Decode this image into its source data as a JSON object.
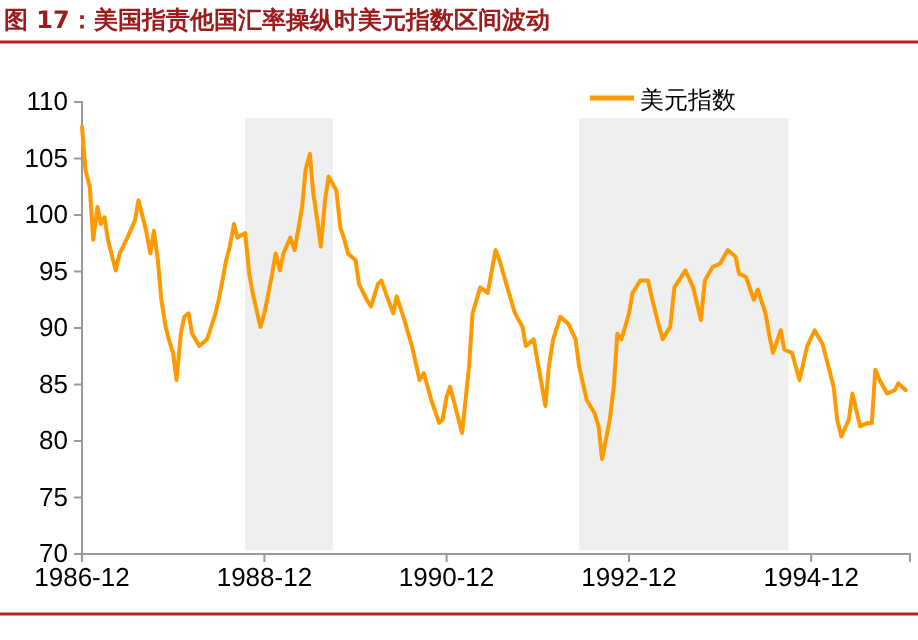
{
  "chart_data": {
    "type": "line",
    "title": "图 17：美国指责他国汇率操纵时美元指数区间波动",
    "series": [
      {
        "name": "美元指数",
        "color": "#ff9900",
        "x": [
          "1986-12-01",
          "1986-12-15",
          "1987-01-01",
          "1987-01-15",
          "1987-02-01",
          "1987-02-15",
          "1987-03-01",
          "1987-03-15",
          "1987-04-15",
          "1987-05-01",
          "1987-06-01",
          "1987-07-01",
          "1987-07-15",
          "1987-08-15",
          "1987-09-01",
          "1987-09-15",
          "1987-10-01",
          "1987-10-15",
          "1987-11-01",
          "1987-11-15",
          "1987-12-01",
          "1987-12-15",
          "1988-01-01",
          "1988-01-15",
          "1988-02-01",
          "1988-02-15",
          "1988-03-15",
          "1988-04-15",
          "1988-05-15",
          "1988-06-01",
          "1988-07-01",
          "1988-07-15",
          "1988-08-01",
          "1988-08-15",
          "1988-09-15",
          "1988-10-01",
          "1988-10-15",
          "1988-11-15",
          "1988-12-01",
          "1989-01-01",
          "1989-01-15",
          "1989-02-01",
          "1989-02-15",
          "1989-03-15",
          "1989-04-01",
          "1989-05-01",
          "1989-05-15",
          "1989-06-01",
          "1989-06-15",
          "1989-07-01",
          "1989-07-15",
          "1989-08-01",
          "1989-08-15",
          "1989-09-15",
          "1989-10-01",
          "1989-10-15",
          "1989-11-01",
          "1989-12-01",
          "1989-12-15",
          "1990-01-15",
          "1990-02-01",
          "1990-03-01",
          "1990-03-15",
          "1990-04-01",
          "1990-05-01",
          "1990-05-15",
          "1990-06-15",
          "1990-07-15",
          "1990-08-15",
          "1990-09-01",
          "1990-10-01",
          "1990-11-01",
          "1990-11-15",
          "1990-12-01",
          "1990-12-15",
          "1991-02-01",
          "1991-03-01",
          "1991-03-15",
          "1991-04-15",
          "1991-05-15",
          "1991-06-15",
          "1991-07-01",
          "1991-08-01",
          "1991-09-01",
          "1991-10-01",
          "1991-10-15",
          "1991-11-15",
          "1992-01-01",
          "1992-01-15",
          "1992-02-01",
          "1992-03-01",
          "1992-04-01",
          "1992-05-01",
          "1992-05-15",
          "1992-06-15",
          "1992-07-15",
          "1992-08-01",
          "1992-08-15",
          "1992-09-15",
          "1992-10-01",
          "1992-10-15",
          "1992-11-01",
          "1992-12-01",
          "1992-12-15",
          "1993-01-15",
          "1993-02-15",
          "1993-03-01",
          "1993-04-01",
          "1993-04-15",
          "1993-05-15",
          "1993-06-01",
          "1993-07-15",
          "1993-08-15",
          "1993-09-15",
          "1993-10-01",
          "1993-11-01",
          "1993-12-01",
          "1994-01-01",
          "1994-02-01",
          "1994-02-15",
          "1994-03-15",
          "1994-04-15",
          "1994-05-01",
          "1994-06-01",
          "1994-06-15",
          "1994-07-01",
          "1994-08-01",
          "1994-08-15",
          "1994-09-15",
          "1994-10-15",
          "1994-11-15",
          "1994-12-15",
          "1995-01-15",
          "1995-02-01",
          "1995-03-01",
          "1995-03-15",
          "1995-04-01",
          "1995-05-01",
          "1995-05-15",
          "1995-06-15",
          "1995-07-15",
          "1995-08-01",
          "1995-08-15",
          "1995-09-01",
          "1995-10-01",
          "1995-11-01",
          "1995-11-15",
          "1995-12-15"
        ],
        "values": [
          107.8,
          104,
          102.5,
          97.8,
          100.7,
          99.2,
          99.8,
          97.8,
          95.1,
          96.6,
          98,
          99.5,
          101.3,
          98.6,
          96.6,
          98.6,
          96,
          92.5,
          90.1,
          88.9,
          87.8,
          85.4,
          89.5,
          91,
          91.3,
          89.5,
          88.4,
          89,
          91,
          92.5,
          96,
          97.2,
          99.2,
          98,
          98.4,
          94.8,
          93.1,
          90.1,
          91.3,
          94.8,
          96.6,
          95.1,
          96.6,
          98,
          96.9,
          100.7,
          104,
          105.4,
          101.9,
          99.5,
          97.2,
          101.3,
          103.4,
          102.2,
          98.9,
          98,
          96.6,
          96,
          93.9,
          92.5,
          91.9,
          93.9,
          94.2,
          93.1,
          91.3,
          92.8,
          90.7,
          88.4,
          85.4,
          86,
          83.6,
          81.6,
          81.9,
          83.9,
          84.8,
          80.7,
          86.6,
          91.3,
          93.6,
          93.1,
          96.9,
          96,
          93.6,
          91.3,
          90.1,
          88.4,
          89,
          83.1,
          86.6,
          89,
          91,
          90.4,
          89,
          86.6,
          83.6,
          82.5,
          81.3,
          78.4,
          81.9,
          84.8,
          89.5,
          89,
          91.3,
          93.1,
          94.2,
          94.2,
          92.8,
          90.1,
          89,
          90.1,
          93.6,
          95.1,
          93.6,
          90.7,
          94.2,
          95.4,
          95.7,
          96.9,
          96.3,
          94.8,
          94.5,
          92.5,
          93.4,
          91.3,
          89.5,
          87.8,
          89.8,
          88.1,
          87.8,
          85.4,
          88.4,
          89.8,
          88.6,
          87.2,
          84.8,
          81.9,
          80.4,
          81.9,
          84.2,
          81.3,
          81.6,
          81.6,
          86.3,
          85.4,
          84.2,
          84.5,
          85.1,
          84.5
        ]
      }
    ],
    "xlim": [
      "1986-12-01",
      "1996-01-01"
    ],
    "xticks": [
      {
        "value": "1986-12-01",
        "label": "1986-12"
      },
      {
        "value": "1988-12-01",
        "label": "1988-12"
      },
      {
        "value": "1990-12-01",
        "label": "1990-12"
      },
      {
        "value": "1992-12-01",
        "label": "1992-12"
      },
      {
        "value": "1994-12-01",
        "label": "1994-12"
      }
    ],
    "ylim": [
      70,
      110
    ],
    "yticks": [
      70,
      75,
      80,
      85,
      90,
      95,
      100,
      105,
      110
    ],
    "bands": [
      {
        "axis": "x",
        "from": "1988-09-15",
        "to": "1989-09-01",
        "color": "#efefef"
      },
      {
        "axis": "x",
        "from": "1992-05-15",
        "to": "1994-09-01",
        "color": "#efefef"
      }
    ],
    "grid": false,
    "legend": "top right",
    "line_style": "solid",
    "marker": "none"
  }
}
